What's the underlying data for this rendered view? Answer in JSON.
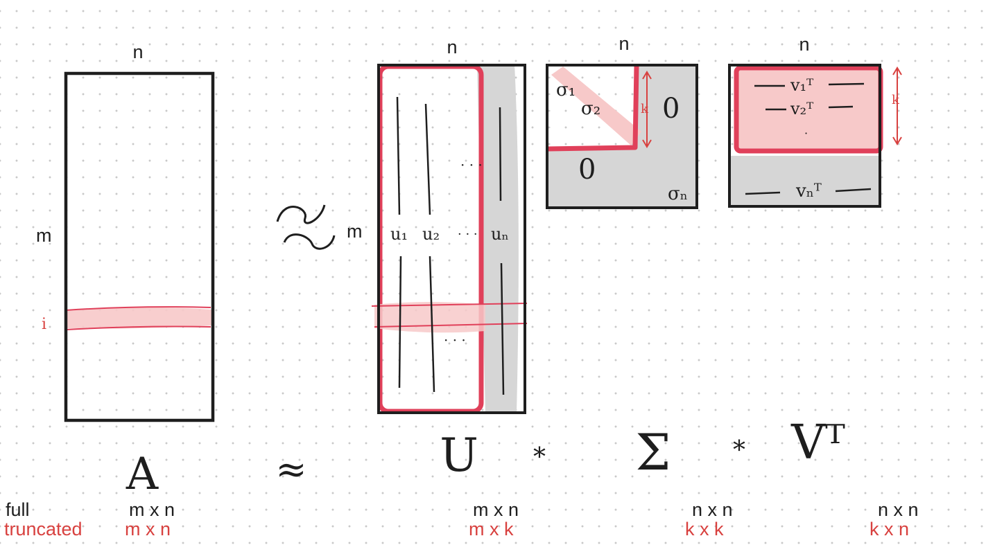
{
  "colors": {
    "ink": "#1e1e1e",
    "accent_red": "#e0405a",
    "annotation_red": "#d8413f",
    "highlight_pink": "#f7c9c9",
    "shade_gray": "#d6d6d6"
  },
  "matrix_A": {
    "top_label": "n",
    "side_label": "m",
    "row_label": "i",
    "symbol": "A"
  },
  "approx_symbol": "≈",
  "matrix_U": {
    "top_label": "n",
    "side_label": "m",
    "columns": [
      "u₁",
      "u₂",
      "· · ·",
      "uₙ"
    ],
    "dots_mid": "· · ·",
    "dots_low": "· · ·",
    "symbol": "U"
  },
  "times_symbol": "*",
  "matrix_Sigma": {
    "top_label": "n",
    "diag": [
      "σ₁",
      "σ₂"
    ],
    "k_label": "k",
    "zero_top": "0",
    "zero_bottom": "0",
    "sigma_n": "σₙ",
    "symbol": "Σ"
  },
  "matrix_Vt": {
    "top_label": "n",
    "rows": [
      "v₁ᵀ",
      "v₂ᵀ",
      "vₙᵀ"
    ],
    "dots": "·",
    "k_label": "k",
    "symbol": "Vᵀ"
  },
  "dimensions": {
    "full_label": "full",
    "truncated_label": "truncated",
    "A_full": "m x n",
    "A_trunc": "m x n",
    "U_full": "m x n",
    "U_trunc": "m x k",
    "Sigma_full": "n x n",
    "Sigma_trunc": "k x k",
    "Vt_full": "n x n",
    "Vt_trunc": "k x n"
  }
}
